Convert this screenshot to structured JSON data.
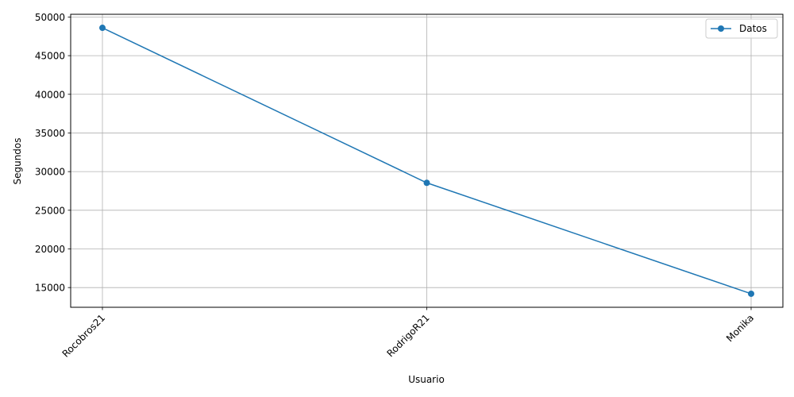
{
  "chart_data": {
    "type": "line",
    "categories": [
      "Rocobros21",
      "RodrigoR21",
      "Monika"
    ],
    "series": [
      {
        "name": "Datos",
        "values": [
          48600,
          28550,
          14200
        ],
        "color": "#1f77b4",
        "marker": "circle"
      }
    ],
    "xlabel": "Usuario",
    "ylabel": "Segundos",
    "ylim": [
      12450,
      50350
    ],
    "yticks": [
      15000,
      20000,
      25000,
      30000,
      35000,
      40000,
      45000,
      50000
    ],
    "grid": true,
    "legend_position": "top-right",
    "x_tick_rotation": 45
  },
  "colors": {
    "grid": "#b0b0b0",
    "axes": "#000000"
  }
}
